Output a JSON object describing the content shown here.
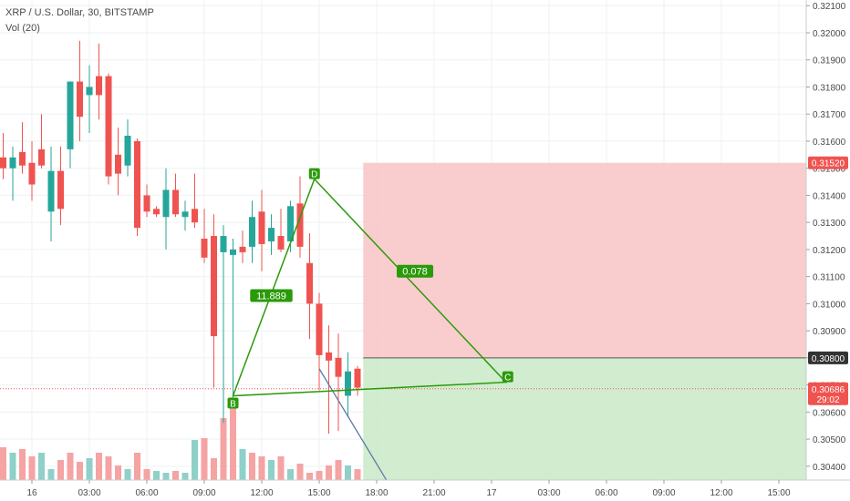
{
  "header": {
    "symbol_line": "XRP / U.S. Dollar, 30, BITSTAMP",
    "volume_line": "Vol (20)"
  },
  "colors": {
    "up": "#26a69a",
    "down": "#ef5350",
    "up_volume": "#8fd0c9",
    "down_volume": "#f5a3a3",
    "pattern": "#2b9a0a",
    "stop_zone": "#f8c4c4",
    "target_zone": "#c9e9c7",
    "price_line": "#ef5350",
    "trend_line": "#5e7ba6"
  },
  "chart_data": {
    "type": "candlestick",
    "title": "XRP / U.S. Dollar, 30, BITSTAMP",
    "indicator": "Vol (20)",
    "grid": true,
    "x_ticks": [
      {
        "label": "16",
        "slot": 0
      },
      {
        "label": "03:00",
        "slot": 6
      },
      {
        "label": "06:00",
        "slot": 12
      },
      {
        "label": "09:00",
        "slot": 18
      },
      {
        "label": "12:00",
        "slot": 24
      },
      {
        "label": "15:00",
        "slot": 30
      },
      {
        "label": "18:00",
        "slot": 36
      },
      {
        "label": "21:00",
        "slot": 42
      },
      {
        "label": "17",
        "slot": 48
      },
      {
        "label": "03:00",
        "slot": 54
      },
      {
        "label": "06:00",
        "slot": 60
      },
      {
        "label": "09:00",
        "slot": 66
      },
      {
        "label": "12:00",
        "slot": 72
      },
      {
        "label": "15:00",
        "slot": 78
      }
    ],
    "y_axis": {
      "range": [
        0.30349,
        0.32121
      ],
      "ticks": [
        "0.30400",
        "0.30500",
        "0.30600",
        "0.30700",
        "0.30800",
        "0.30900",
        "0.31000",
        "0.31100",
        "0.31200",
        "0.31300",
        "0.31400",
        "0.31500",
        "0.31600",
        "0.31700",
        "0.31800",
        "0.31900",
        "0.32000",
        "0.32100"
      ]
    },
    "price_labels": [
      {
        "value": 0.3152,
        "label": "0.31520",
        "bg": "#ef5350",
        "fg": "#ffffff"
      },
      {
        "value": 0.308,
        "label": "0.30800",
        "bg": "#333333",
        "fg": "#ffffff"
      },
      {
        "value": 0.30686,
        "label": "0.30686",
        "bg": "#ef5350",
        "fg": "#ffffff"
      },
      {
        "value": 0.30649,
        "label": "29:02",
        "bg": "#ef5350",
        "fg": "#ffffff"
      }
    ],
    "current_price": 0.30686,
    "candles": [
      {
        "slot": -3,
        "o": 0.3154,
        "h": 0.3163,
        "l": 0.3146,
        "c": 0.315
      },
      {
        "slot": -2,
        "o": 0.315,
        "h": 0.3158,
        "l": 0.3138,
        "c": 0.3154
      },
      {
        "slot": -1,
        "o": 0.3156,
        "h": 0.3167,
        "l": 0.3148,
        "c": 0.3151
      },
      {
        "slot": 0,
        "o": 0.3152,
        "h": 0.316,
        "l": 0.3138,
        "c": 0.3144
      },
      {
        "slot": 1,
        "o": 0.3157,
        "h": 0.317,
        "l": 0.315,
        "c": 0.3151
      },
      {
        "slot": 2,
        "o": 0.3134,
        "h": 0.3158,
        "l": 0.3123,
        "c": 0.3149
      },
      {
        "slot": 3,
        "o": 0.3149,
        "h": 0.3158,
        "l": 0.3129,
        "c": 0.3135
      },
      {
        "slot": 4,
        "o": 0.3157,
        "h": 0.3181,
        "l": 0.315,
        "c": 0.3182
      },
      {
        "slot": 5,
        "o": 0.3182,
        "h": 0.3197,
        "l": 0.316,
        "c": 0.3169
      },
      {
        "slot": 6,
        "o": 0.3177,
        "h": 0.3188,
        "l": 0.3163,
        "c": 0.318
      },
      {
        "slot": 7,
        "o": 0.3184,
        "h": 0.3196,
        "l": 0.3168,
        "c": 0.3177
      },
      {
        "slot": 8,
        "o": 0.3184,
        "h": 0.3185,
        "l": 0.3144,
        "c": 0.3147
      },
      {
        "slot": 9,
        "o": 0.3155,
        "h": 0.3165,
        "l": 0.314,
        "c": 0.3148
      },
      {
        "slot": 10,
        "o": 0.3151,
        "h": 0.3168,
        "l": 0.3147,
        "c": 0.3162
      },
      {
        "slot": 11,
        "o": 0.316,
        "h": 0.3161,
        "l": 0.3125,
        "c": 0.3128
      },
      {
        "slot": 12,
        "o": 0.314,
        "h": 0.3144,
        "l": 0.3132,
        "c": 0.3134
      },
      {
        "slot": 13,
        "o": 0.3135,
        "h": 0.3136,
        "l": 0.3132,
        "c": 0.3133
      },
      {
        "slot": 14,
        "o": 0.3132,
        "h": 0.315,
        "l": 0.312,
        "c": 0.3142
      },
      {
        "slot": 15,
        "o": 0.3142,
        "h": 0.3148,
        "l": 0.3132,
        "c": 0.3133
      },
      {
        "slot": 16,
        "o": 0.3132,
        "h": 0.3138,
        "l": 0.3127,
        "c": 0.3134
      },
      {
        "slot": 17,
        "o": 0.3135,
        "h": 0.3148,
        "l": 0.3128,
        "c": 0.313
      },
      {
        "slot": 18,
        "o": 0.3124,
        "h": 0.3135,
        "l": 0.3115,
        "c": 0.3117
      },
      {
        "slot": 19,
        "o": 0.3125,
        "h": 0.3133,
        "l": 0.3069,
        "c": 0.3088
      },
      {
        "slot": 20,
        "o": 0.3119,
        "h": 0.3129,
        "l": 0.3056,
        "c": 0.3125
      },
      {
        "slot": 21,
        "o": 0.3118,
        "h": 0.3124,
        "l": 0.3062,
        "c": 0.312
      },
      {
        "slot": 22,
        "o": 0.3121,
        "h": 0.3127,
        "l": 0.3115,
        "c": 0.3119
      },
      {
        "slot": 23,
        "o": 0.3121,
        "h": 0.3138,
        "l": 0.3115,
        "c": 0.3132
      },
      {
        "slot": 24,
        "o": 0.3134,
        "h": 0.3142,
        "l": 0.3112,
        "c": 0.3122
      },
      {
        "slot": 25,
        "o": 0.3123,
        "h": 0.3133,
        "l": 0.3118,
        "c": 0.3128
      },
      {
        "slot": 26,
        "o": 0.3125,
        "h": 0.3135,
        "l": 0.3119,
        "c": 0.312
      },
      {
        "slot": 27,
        "o": 0.3123,
        "h": 0.3138,
        "l": 0.3119,
        "c": 0.3136
      },
      {
        "slot": 28,
        "o": 0.3137,
        "h": 0.3147,
        "l": 0.3117,
        "c": 0.3121
      },
      {
        "slot": 29,
        "o": 0.3115,
        "h": 0.3126,
        "l": 0.3087,
        "c": 0.31
      },
      {
        "slot": 30,
        "o": 0.31,
        "h": 0.3104,
        "l": 0.3068,
        "c": 0.3081
      },
      {
        "slot": 31,
        "o": 0.3082,
        "h": 0.3092,
        "l": 0.3052,
        "c": 0.3079
      },
      {
        "slot": 32,
        "o": 0.308,
        "h": 0.3089,
        "l": 0.3053,
        "c": 0.3073
      },
      {
        "slot": 33,
        "o": 0.3066,
        "h": 0.3082,
        "l": 0.3058,
        "c": 0.3075
      },
      {
        "slot": 34,
        "o": 0.3076,
        "h": 0.3077,
        "l": 0.3066,
        "c": 0.3069
      }
    ],
    "volumes": [
      {
        "slot": -3,
        "v": 0.36,
        "up": false
      },
      {
        "slot": -2,
        "v": 0.3,
        "up": true
      },
      {
        "slot": -1,
        "v": 0.34,
        "up": false
      },
      {
        "slot": 0,
        "v": 0.26,
        "up": false
      },
      {
        "slot": 1,
        "v": 0.3,
        "up": true
      },
      {
        "slot": 2,
        "v": 0.12,
        "up": true
      },
      {
        "slot": 3,
        "v": 0.22,
        "up": false
      },
      {
        "slot": 4,
        "v": 0.3,
        "up": false
      },
      {
        "slot": 5,
        "v": 0.2,
        "up": false
      },
      {
        "slot": 6,
        "v": 0.24,
        "up": true
      },
      {
        "slot": 7,
        "v": 0.3,
        "up": false
      },
      {
        "slot": 8,
        "v": 0.26,
        "up": false
      },
      {
        "slot": 9,
        "v": 0.16,
        "up": false
      },
      {
        "slot": 10,
        "v": 0.12,
        "up": true
      },
      {
        "slot": 11,
        "v": 0.3,
        "up": false
      },
      {
        "slot": 12,
        "v": 0.12,
        "up": false
      },
      {
        "slot": 13,
        "v": 0.1,
        "up": true
      },
      {
        "slot": 14,
        "v": 0.08,
        "up": true
      },
      {
        "slot": 15,
        "v": 0.1,
        "up": false
      },
      {
        "slot": 16,
        "v": 0.08,
        "up": true
      },
      {
        "slot": 17,
        "v": 0.44,
        "up": true
      },
      {
        "slot": 18,
        "v": 0.46,
        "up": false
      },
      {
        "slot": 19,
        "v": 0.24,
        "up": false
      },
      {
        "slot": 20,
        "v": 0.68,
        "up": false
      },
      {
        "slot": 21,
        "v": 0.86,
        "up": false
      },
      {
        "slot": 22,
        "v": 0.34,
        "up": true
      },
      {
        "slot": 23,
        "v": 0.3,
        "up": false
      },
      {
        "slot": 24,
        "v": 0.26,
        "up": false
      },
      {
        "slot": 25,
        "v": 0.22,
        "up": true
      },
      {
        "slot": 26,
        "v": 0.26,
        "up": false
      },
      {
        "slot": 27,
        "v": 0.12,
        "up": true
      },
      {
        "slot": 28,
        "v": 0.18,
        "up": false
      },
      {
        "slot": 29,
        "v": 0.08,
        "up": false
      },
      {
        "slot": 30,
        "v": 0.1,
        "up": false
      },
      {
        "slot": 31,
        "v": 0.16,
        "up": false
      },
      {
        "slot": 32,
        "v": 0.22,
        "up": false
      },
      {
        "slot": 33,
        "v": 0.16,
        "up": true
      },
      {
        "slot": 34,
        "v": 0.12,
        "up": false
      }
    ],
    "long_position": {
      "from_slot": 34.6,
      "entry": 0.308,
      "stop": 0.3152,
      "target_fill_to_bottom": true
    },
    "pattern": {
      "points": [
        {
          "label": "B",
          "slot": 21,
          "price": 0.3066
        },
        {
          "label": "D",
          "slot": 29.5,
          "price": 0.3146
        },
        {
          "label": "C",
          "slot": 49.5,
          "price": 0.3071
        }
      ],
      "ratios": [
        {
          "label": "11.889",
          "slot": 25,
          "price": 0.3103
        },
        {
          "label": "0.078",
          "slot": 40,
          "price": 0.3112
        }
      ]
    },
    "trend_line": {
      "from_slot": 30,
      "from_price": 0.3076,
      "to_slot": 37,
      "to_price": 0.3035
    }
  }
}
